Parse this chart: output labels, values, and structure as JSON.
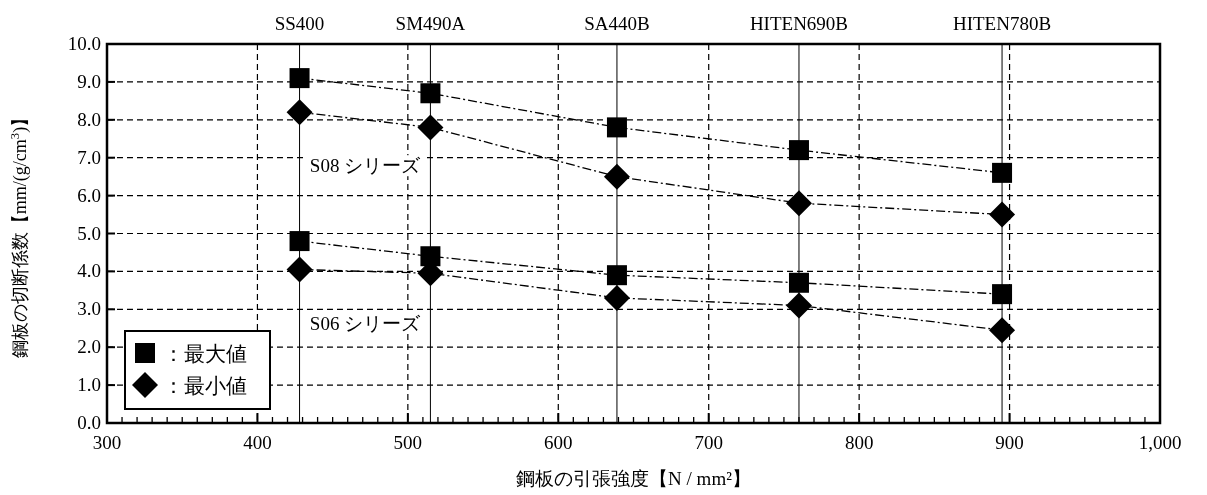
{
  "chart_data": {
    "type": "line",
    "xlabel": "鋼板の引張強度【N / mm²】",
    "ylabel": "鋼板の切断係数【mm/(g/cm$^{3}$)】",
    "x": [
      428,
      515,
      639,
      760,
      895
    ],
    "series": [
      {
        "name": "：最大値",
        "color": "#000000",
        "marker": "square",
        "values": [
          9.1,
          8.7,
          7.8,
          7.2,
          6.6
        ]
      },
      {
        "name": "：最小値",
        "color": "#000000",
        "marker": "diamond",
        "values": [
          8.2,
          7.8,
          6.5,
          5.8,
          5.5
        ]
      },
      {
        "color": "#000000",
        "marker": "square",
        "values": [
          4.8,
          4.4,
          3.9,
          3.7,
          3.4
        ]
      },
      {
        "color": "#000000",
        "marker": "diamond",
        "values": [
          4.05,
          3.95,
          3.3,
          3.1,
          2.45
        ]
      }
    ],
    "line_style": "dashed",
    "xlim": [
      300,
      1000
    ],
    "ylim": [
      0,
      10
    ],
    "xticks": [
      300,
      400,
      500,
      600,
      700,
      800,
      900,
      {
        "value": 1000,
        "label": "1,000"
      }
    ],
    "yticks": [
      {
        "value": 0,
        "label": "0.0"
      },
      {
        "value": 1,
        "label": "1.0"
      },
      {
        "value": 2,
        "label": "2.0"
      },
      {
        "value": 3,
        "label": "3.0"
      },
      {
        "value": 4,
        "label": "4.0"
      },
      {
        "value": 5,
        "label": "5.0"
      },
      {
        "value": 6,
        "label": "6.0"
      },
      {
        "value": 7,
        "label": "7.0"
      },
      {
        "value": 8,
        "label": "8.0"
      },
      {
        "value": 9,
        "label": "9.0"
      },
      {
        "value": 10,
        "label": "10.0"
      }
    ],
    "ref_lines": [
      {
        "axis": "x",
        "value": 428,
        "label": "SS400"
      },
      {
        "axis": "x",
        "value": 515,
        "label": "SM490A"
      },
      {
        "axis": "x",
        "value": 639,
        "label": "SA440B"
      },
      {
        "axis": "x",
        "value": 760,
        "label": "HITEN690B"
      },
      {
        "axis": "x",
        "value": 895,
        "label": "HITEN780B"
      }
    ],
    "annotations": [
      "S08 シリーズ",
      "S06 シリーズ"
    ],
    "grid": true,
    "legend": "bottom left"
  }
}
